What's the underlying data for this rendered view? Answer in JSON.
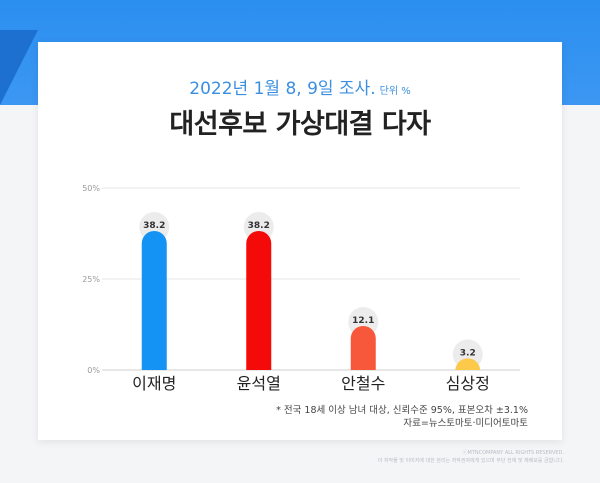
{
  "header": {
    "date_text": "2022년 1월 8, 9일 조사.",
    "unit_text": "단위 %",
    "title": "대선후보 가상대결 다자"
  },
  "chart_data": {
    "type": "bar",
    "categories": [
      "이재명",
      "윤석열",
      "안철수",
      "심상정"
    ],
    "values": [
      38.2,
      38.2,
      12.1,
      3.2
    ],
    "value_labels": [
      "38.2",
      "38.2",
      "12.1",
      "3.2"
    ],
    "colors": [
      "#1593f5",
      "#f50a0a",
      "#f7573a",
      "#fdc94a"
    ],
    "yticks": [
      "0%",
      "25%",
      "50%"
    ],
    "ylim": [
      0,
      50
    ],
    "grid": true,
    "title": "대선후보 가상대결 다자",
    "xlabel": "",
    "ylabel": ""
  },
  "footnote": {
    "line1": "* 전국 18세 이상 남녀 대상, 신뢰수준 95%, 표본오차 ±3.1%",
    "line2": "자료=뉴스토마토·미디어토마토"
  },
  "copyright": {
    "line1": "ⓒMTNCOMPANY ALL RIGHTS RESERVED.",
    "line2": "이 저작물 및 이미지에 대한 권리는 저작권자에게 있으며 무단 전재 및 재배포를 금합니다."
  }
}
